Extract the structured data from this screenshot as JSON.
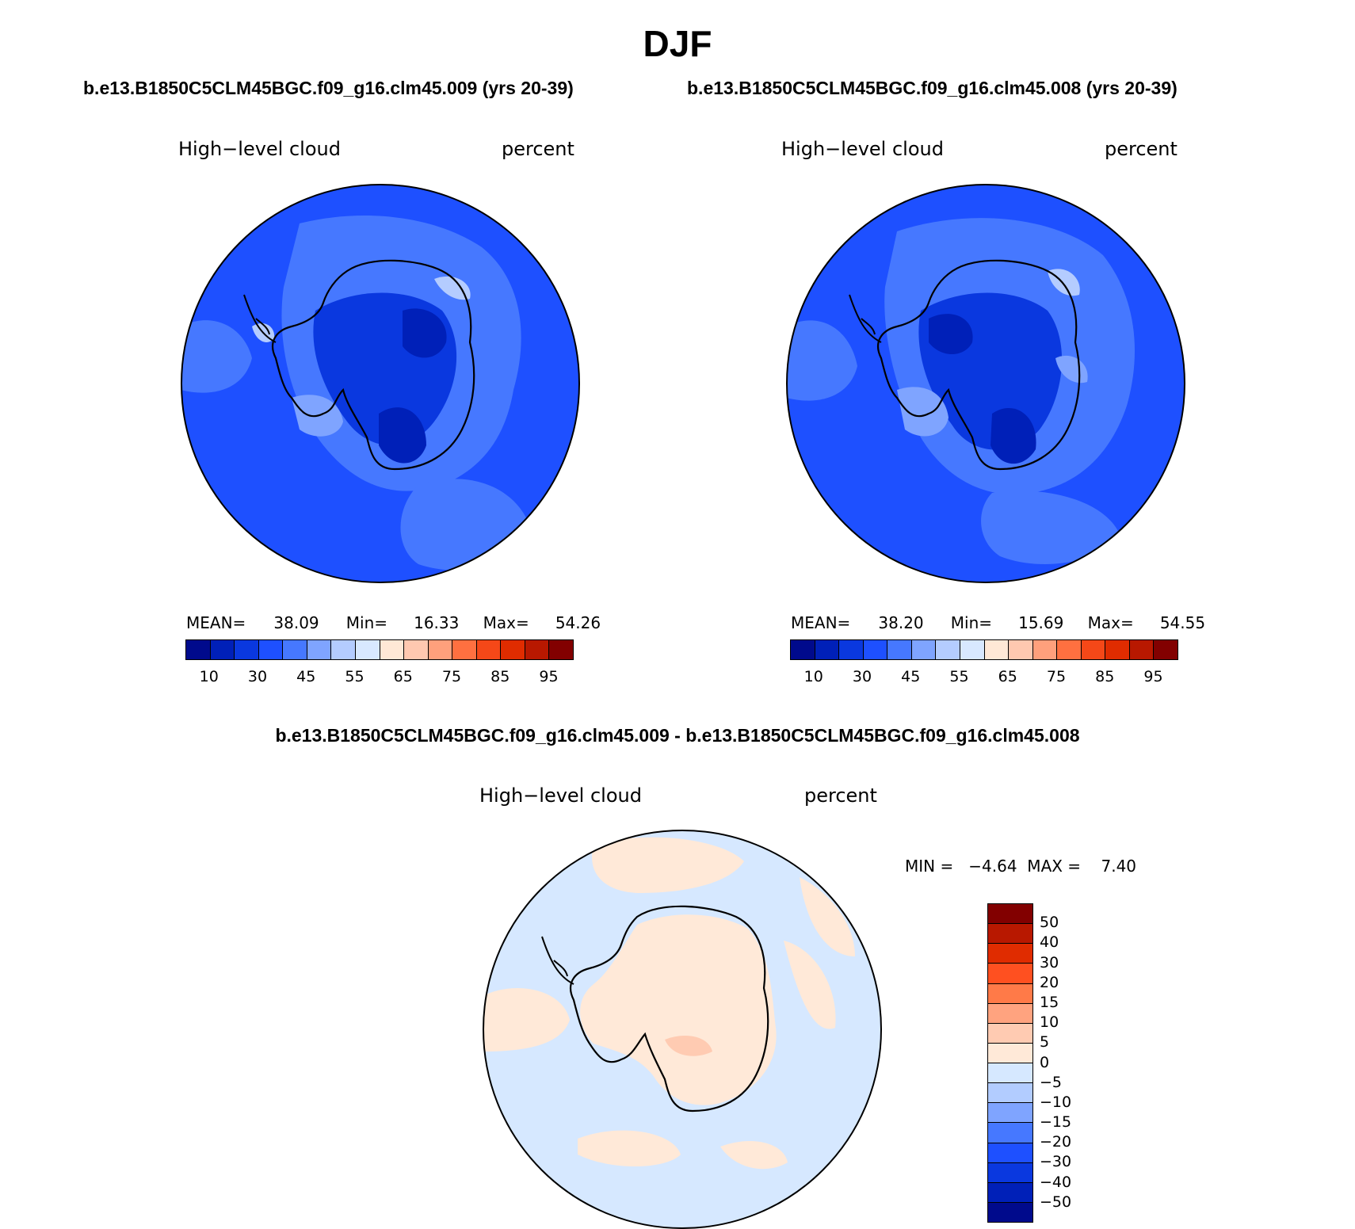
{
  "title": "DJF",
  "panels": [
    {
      "case_title": "b.e13.B1850C5CLM45BGC.f09_g16.clm45.009 (yrs 20-39)",
      "variable": "High−level cloud",
      "units": "percent",
      "stats": {
        "mean_label": "MEAN=",
        "mean": "38.09",
        "min_label": "Min=",
        "min": "16.33",
        "max_label": "Max=",
        "max": "54.26"
      }
    },
    {
      "case_title": "b.e13.B1850C5CLM45BGC.f09_g16.clm45.008 (yrs 20-39)",
      "variable": "High−level cloud",
      "units": "percent",
      "stats": {
        "mean_label": "MEAN=",
        "mean": "38.20",
        "min_label": "Min=",
        "min": "15.69",
        "max_label": "Max=",
        "max": "54.55"
      }
    }
  ],
  "diff_panel": {
    "case_title": "b.e13.B1850C5CLM45BGC.f09_g16.clm45.009 - b.e13.B1850C5CLM45BGC.f09_g16.clm45.008",
    "variable": "High−level cloud",
    "units": "percent",
    "stats_text": "MIN =   −4.64  MAX =    7.40"
  },
  "abs_colorbar": {
    "tick_labels": [
      "10",
      "30",
      "45",
      "55",
      "65",
      "75",
      "85",
      "95"
    ],
    "colors": [
      "#000a8c",
      "#0020b8",
      "#0a38df",
      "#1e50ff",
      "#4678ff",
      "#7fa4ff",
      "#b4ccff",
      "#d8e8ff",
      "#ffe8d6",
      "#ffc8b0",
      "#ffa07c",
      "#ff7040",
      "#f54818",
      "#e02c00",
      "#b81800",
      "#820000"
    ]
  },
  "diff_colorbar": {
    "tick_labels": [
      "50",
      "40",
      "30",
      "20",
      "15",
      "10",
      "5",
      "0",
      "−5",
      "−10",
      "−15",
      "−20",
      "−30",
      "−40",
      "−50"
    ],
    "colors": [
      "#820000",
      "#b81800",
      "#e02c00",
      "#ff5020",
      "#ff7a48",
      "#ffa37f",
      "#ffcbb2",
      "#ffe9d8",
      "#d6e8ff",
      "#b2ccff",
      "#7fa4ff",
      "#4678ff",
      "#1e50ff",
      "#0a38df",
      "#0020b8",
      "#000a8c"
    ]
  },
  "map_colors": {
    "ocean": "#1e50ff",
    "light": "#4678ff",
    "lighter": "#7fa4ff",
    "lightest": "#b4ccff",
    "dark": "#0a38df",
    "darker": "#0020b8",
    "diff_neg": "#d6e8ff",
    "diff_pos": "#ffe9d8",
    "diff_pos2": "#ffcbb2"
  }
}
